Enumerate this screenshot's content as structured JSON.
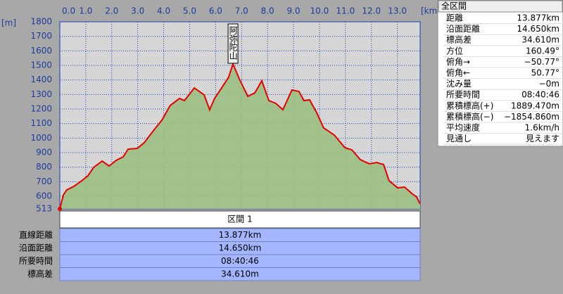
{
  "chart_data": {
    "type": "area",
    "x_unit": "[km]",
    "y_unit": "[m]",
    "x": [
      0,
      0.14,
      0.27,
      0.54,
      0.81,
      1.08,
      1.3,
      1.63,
      1.9,
      2.17,
      2.44,
      2.63,
      2.98,
      3.25,
      3.6,
      3.93,
      4.25,
      4.61,
      4.8,
      5.18,
      5.56,
      5.77,
      5.96,
      6.23,
      6.5,
      6.67,
      6.91,
      7.24,
      7.51,
      7.78,
      8.05,
      8.32,
      8.59,
      8.94,
      9.21,
      9.4,
      9.62,
      9.89,
      10.16,
      10.57,
      10.98,
      11.25,
      11.57,
      11.92,
      12.2,
      12.47,
      12.68,
      13.01,
      13.28,
      13.55,
      13.74,
      13.877
    ],
    "series": [
      {
        "color": "#e60000",
        "fill": "#9cc083",
        "values": [
          513,
          610,
          644,
          668,
          702,
          740,
          798,
          842,
          808,
          847,
          871,
          924,
          929,
          968,
          1050,
          1123,
          1224,
          1273,
          1258,
          1345,
          1297,
          1195,
          1273,
          1345,
          1418,
          1510,
          1408,
          1287,
          1311,
          1394,
          1258,
          1239,
          1195,
          1331,
          1321,
          1258,
          1263,
          1176,
          1070,
          1021,
          934,
          919,
          852,
          823,
          832,
          818,
          707,
          658,
          663,
          620,
          595,
          547
        ]
      }
    ],
    "xlim": [
      0,
      13.877
    ],
    "ylim": [
      513,
      1800
    ],
    "xticks": [
      {
        "value": 0,
        "label": "0.0"
      },
      {
        "value": 1,
        "label": "1.0"
      },
      {
        "value": 2,
        "label": "2.0"
      },
      {
        "value": 3,
        "label": "3.0"
      },
      {
        "value": 4,
        "label": "4.0"
      },
      {
        "value": 5,
        "label": "5.0"
      },
      {
        "value": 6,
        "label": "6.0"
      },
      {
        "value": 7,
        "label": "7.0"
      },
      {
        "value": 8,
        "label": "8.0"
      },
      {
        "value": 9,
        "label": "9.0"
      },
      {
        "value": 10,
        "label": "10.0"
      },
      {
        "value": 11,
        "label": "11.0"
      },
      {
        "value": 12,
        "label": "12.0"
      },
      {
        "value": 13,
        "label": "13.0"
      }
    ],
    "yticks": [
      513,
      600,
      700,
      800,
      900,
      1000,
      1100,
      1200,
      1300,
      1400,
      1500,
      1600,
      1700,
      1800
    ],
    "grid": true,
    "annotations": [
      {
        "text": "阿弥陀山",
        "x": 6.67,
        "y": 1510
      }
    ]
  },
  "summary_panel": {
    "title": "全区間",
    "rows": [
      [
        "距離",
        "13.877km"
      ],
      [
        "沿面距離",
        "14.650km"
      ],
      [
        "標高差",
        "34.610m"
      ],
      [
        "方位",
        "160.49°"
      ],
      [
        "俯角→",
        "−50.77°"
      ],
      [
        "俯角←",
        "50.77°"
      ],
      [
        "沈み量",
        "−0m"
      ],
      [
        "所要時間",
        "08:40:46"
      ],
      [
        "累積標高(+)",
        "1889.470m"
      ],
      [
        "累積標高(−)",
        "−1854.860m"
      ],
      [
        "平均速度",
        "1.6km/h"
      ],
      [
        "見通し",
        "見えます"
      ]
    ]
  },
  "section_table": {
    "header": "区間 1",
    "rows": [
      [
        "直線距離",
        "13.877km"
      ],
      [
        "沿面距離",
        "14.650km"
      ],
      [
        "所要時間",
        "08:40:46"
      ],
      [
        "標高差",
        "34.610m"
      ]
    ]
  }
}
